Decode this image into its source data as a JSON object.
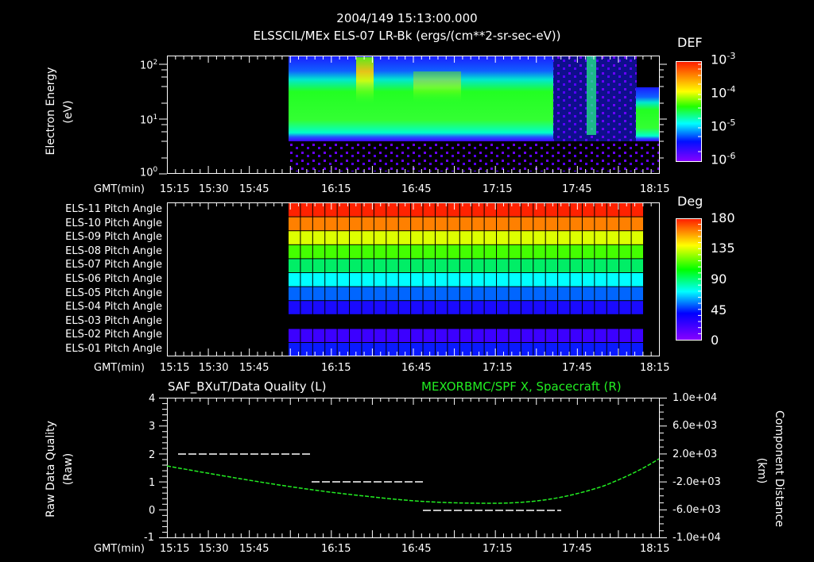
{
  "header": {
    "timestamp": "2004/149 15:13:00.000",
    "title": "ELSSCIL/MEx ELS-07 LR-Bk  (ergs/(cm**2-sr-sec-eV))"
  },
  "time_axis": {
    "label": "GMT(min)",
    "ticks": [
      "15:15",
      "15:30",
      "15:45",
      "16:15",
      "16:45",
      "17:15",
      "17:45",
      "18:15"
    ]
  },
  "panel1": {
    "ylabel": "Electron Energy",
    "yunits": "(eV)",
    "yticks": [
      "10^2",
      "10^1",
      "10^0"
    ],
    "colorbar": {
      "title": "DEF",
      "labels": [
        "10^-3",
        "10^-4",
        "10^-5",
        "10^-6"
      ]
    }
  },
  "panel2": {
    "rows": [
      "ELS-11 Pitch Angle",
      "ELS-10 Pitch Angle",
      "ELS-09 Pitch Angle",
      "ELS-08 Pitch Angle",
      "ELS-07 Pitch Angle",
      "ELS-06 Pitch Angle",
      "ELS-05 Pitch Angle",
      "ELS-04 Pitch Angle",
      "ELS-03 Pitch Angle",
      "ELS-02 Pitch Angle",
      "ELS-01 Pitch Angle"
    ],
    "row_colors": [
      "#ff2200",
      "#ff8000",
      "#ddff00",
      "#44ff00",
      "#00ee66",
      "#00ffff",
      "#0066ff",
      "#1a0aff",
      null,
      "#3c00ff",
      "#0a1aff"
    ],
    "colorbar": {
      "title": "Deg",
      "labels": [
        "180",
        "135",
        "90",
        "45",
        "0"
      ]
    }
  },
  "panel3": {
    "left_title": "SAF_BXuT/Data Quality (L)",
    "right_title": "MEXORBMC/SPF X, Spacecraft (R)",
    "right_title_color": "#22ee22",
    "ylabel_left": "Raw Data Quality",
    "yunits_left": "(Raw)",
    "ylabel_right": "Component Distance",
    "yunits_right": "(km)",
    "yticks_left": [
      "4",
      "3",
      "2",
      "1",
      "0",
      "-1"
    ],
    "yticks_right": [
      "1.0e+04",
      "6.0e+03",
      "2.0e+03",
      "-2.0e+03",
      "-6.0e+03",
      "-1.0e+04"
    ]
  },
  "chart_data": [
    {
      "type": "heatmap",
      "title": "ELSSCIL/MEx ELS-07 LR-Bk (ergs/(cm**2-sr-sec-eV))",
      "subtitle": "2004/149 15:13:00.000",
      "xlabel": "GMT(min)",
      "ylabel": "Electron Energy (eV)",
      "x_ticks": [
        "15:15",
        "15:30",
        "15:45",
        "16:15",
        "16:45",
        "17:15",
        "17:45",
        "18:15"
      ],
      "y_scale": "log",
      "ylim": [
        1,
        150
      ],
      "colorbar": {
        "label": "DEF",
        "scale": "log",
        "range": [
          1e-06,
          0.001
        ]
      },
      "data_start": "16:00",
      "notes": "No data before ~16:00; broad green (~1e-4) band 4-40 eV from 16:00 to ~17:30; yellow/orange intensifications near 16:22-16:27 at 30-100 eV; sparse data 17:30-17:58 with narrow burst near 17:50; green band resumes after ~18:00."
    },
    {
      "type": "heatmap",
      "title": "ELS Pitch Angle",
      "xlabel": "GMT(min)",
      "categories": [
        "ELS-11",
        "ELS-10",
        "ELS-09",
        "ELS-08",
        "ELS-07",
        "ELS-06",
        "ELS-05",
        "ELS-04",
        "ELS-03",
        "ELS-02",
        "ELS-01"
      ],
      "values_deg": [
        170,
        150,
        128,
        105,
        95,
        75,
        55,
        35,
        null,
        25,
        30
      ],
      "colorbar": {
        "label": "Deg",
        "range": [
          0,
          180
        ],
        "ticks": [
          0,
          45,
          90,
          135,
          180
        ]
      },
      "x_range": [
        "16:00",
        "18:12"
      ]
    },
    {
      "type": "line",
      "title": "SAF_BXuT/Data Quality (L) / MEXORBMC/SPF X, Spacecraft (R)",
      "xlabel": "GMT(min)",
      "x_ticks": [
        "15:15",
        "15:30",
        "15:45",
        "16:15",
        "16:45",
        "17:15",
        "17:45",
        "18:15"
      ],
      "series": [
        {
          "name": "Data Quality (L)",
          "axis": "left",
          "color": "#ffffff",
          "x": [
            "15:19",
            "16:19",
            "16:20",
            "17:10",
            "17:11",
            "18:12"
          ],
          "values": [
            2,
            2,
            1,
            1,
            0,
            0
          ]
        },
        {
          "name": "MEXORBMC/SPF X, Spacecraft (R)",
          "axis": "right",
          "color": "#22ee22",
          "x": [
            "15:15",
            "15:45",
            "16:15",
            "16:45",
            "17:15",
            "17:30",
            "17:45",
            "18:00",
            "18:15"
          ],
          "values": [
            1000,
            -1000,
            -3300,
            -5000,
            -5800,
            -5500,
            -4000,
            -1000,
            2200
          ]
        }
      ],
      "ylim_left": [
        -1,
        4
      ],
      "ylim_right": [
        -10000,
        10000
      ]
    }
  ]
}
